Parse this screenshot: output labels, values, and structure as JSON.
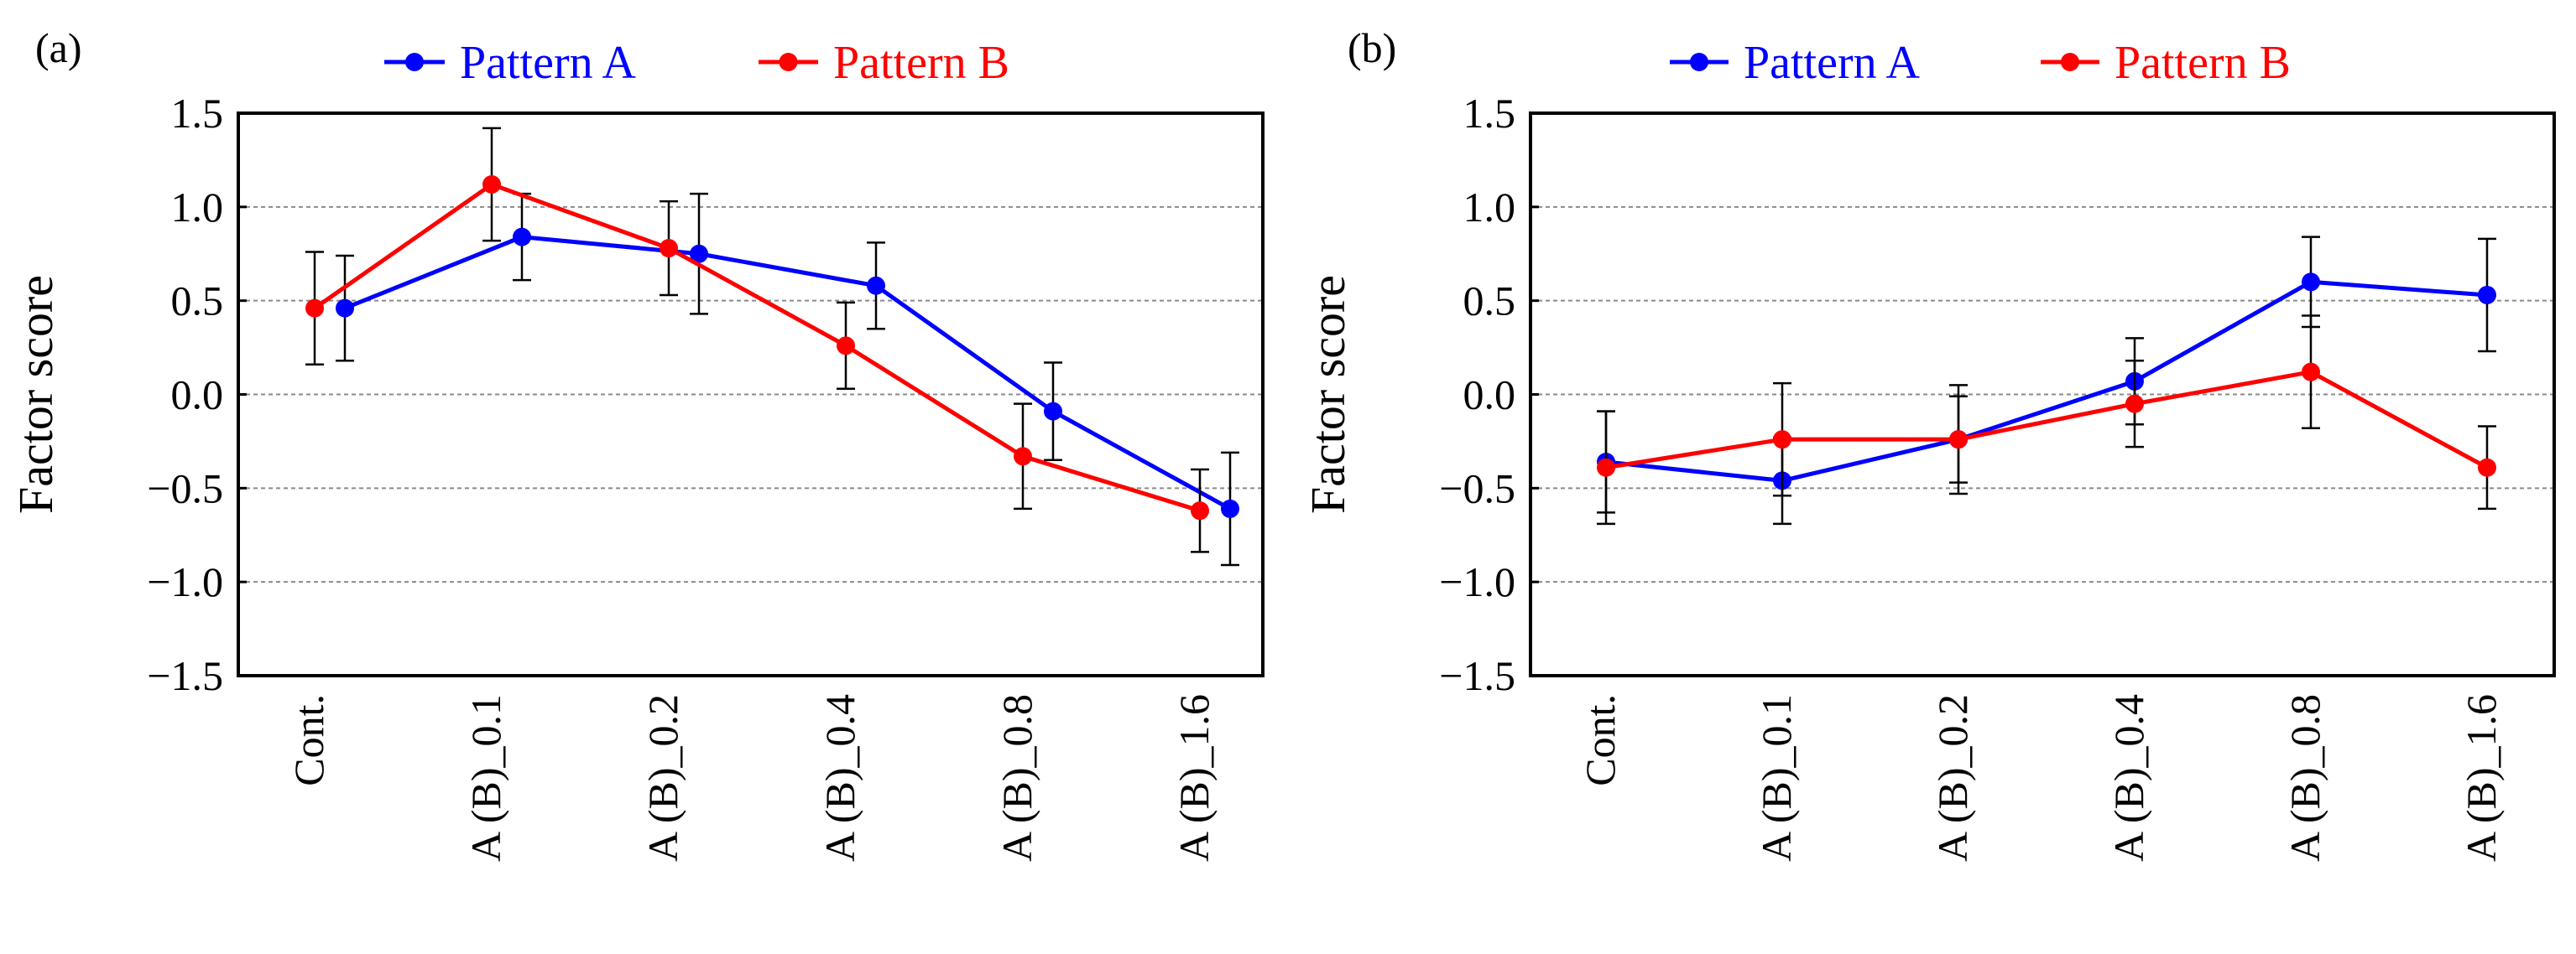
{
  "chart_data": [
    {
      "type": "line",
      "panel_label": "(a)",
      "ylabel": "Factor score",
      "ylim": [
        -1.5,
        1.5
      ],
      "yticks": [
        1.5,
        1.0,
        0.5,
        0.0,
        -0.5,
        -1.0,
        -1.5
      ],
      "ytick_labels": [
        "1.5",
        "1.0",
        "0.5",
        "0.0",
        "−0.5",
        "−1.0",
        "−1.5"
      ],
      "categories": [
        "Cont.",
        "A (B)_0.1",
        "A (B)_0.2",
        "A (B)_0.4",
        "A (B)_0.8",
        "A (B)_1.6"
      ],
      "grid": "horizontal dashed",
      "legend_position": "top",
      "error_bars": true,
      "series": [
        {
          "name": "Pattern A",
          "color": "#0000ff",
          "values": [
            0.46,
            0.84,
            0.75,
            0.58,
            -0.09,
            -0.61
          ],
          "errors": [
            0.28,
            0.23,
            0.32,
            0.23,
            0.26,
            0.3
          ]
        },
        {
          "name": "Pattern B",
          "color": "#ff0000",
          "values": [
            0.46,
            1.12,
            0.78,
            0.26,
            -0.33,
            -0.62
          ],
          "errors": [
            0.3,
            0.3,
            0.25,
            0.23,
            0.28,
            0.22
          ]
        }
      ]
    },
    {
      "type": "line",
      "panel_label": "(b)",
      "ylabel": "Factor score",
      "ylim": [
        -1.5,
        1.5
      ],
      "yticks": [
        1.5,
        1.0,
        0.5,
        0.0,
        -0.5,
        -1.0,
        -1.5
      ],
      "ytick_labels": [
        "1.5",
        "1.0",
        "0.5",
        "0.0",
        "−0.5",
        "−1.0",
        "−1.5"
      ],
      "categories": [
        "Cont.",
        "A (B)_0.1",
        "A (B)_0.2",
        "A (B)_0.4",
        "A (B)_0.8",
        "A (B)_1.6"
      ],
      "grid": "horizontal dashed",
      "legend_position": "top",
      "error_bars": true,
      "series": [
        {
          "name": "Pattern A",
          "color": "#0000ff",
          "values": [
            -0.36,
            -0.46,
            -0.24,
            0.07,
            0.6,
            0.53
          ],
          "errors": [
            0.27,
            0.23,
            0.29,
            0.23,
            0.24,
            0.3
          ]
        },
        {
          "name": "Pattern B",
          "color": "#ff0000",
          "values": [
            -0.39,
            -0.24,
            -0.24,
            -0.05,
            0.12,
            -0.39
          ],
          "errors": [
            0.3,
            0.3,
            0.23,
            0.23,
            0.3,
            0.22
          ]
        }
      ]
    }
  ]
}
